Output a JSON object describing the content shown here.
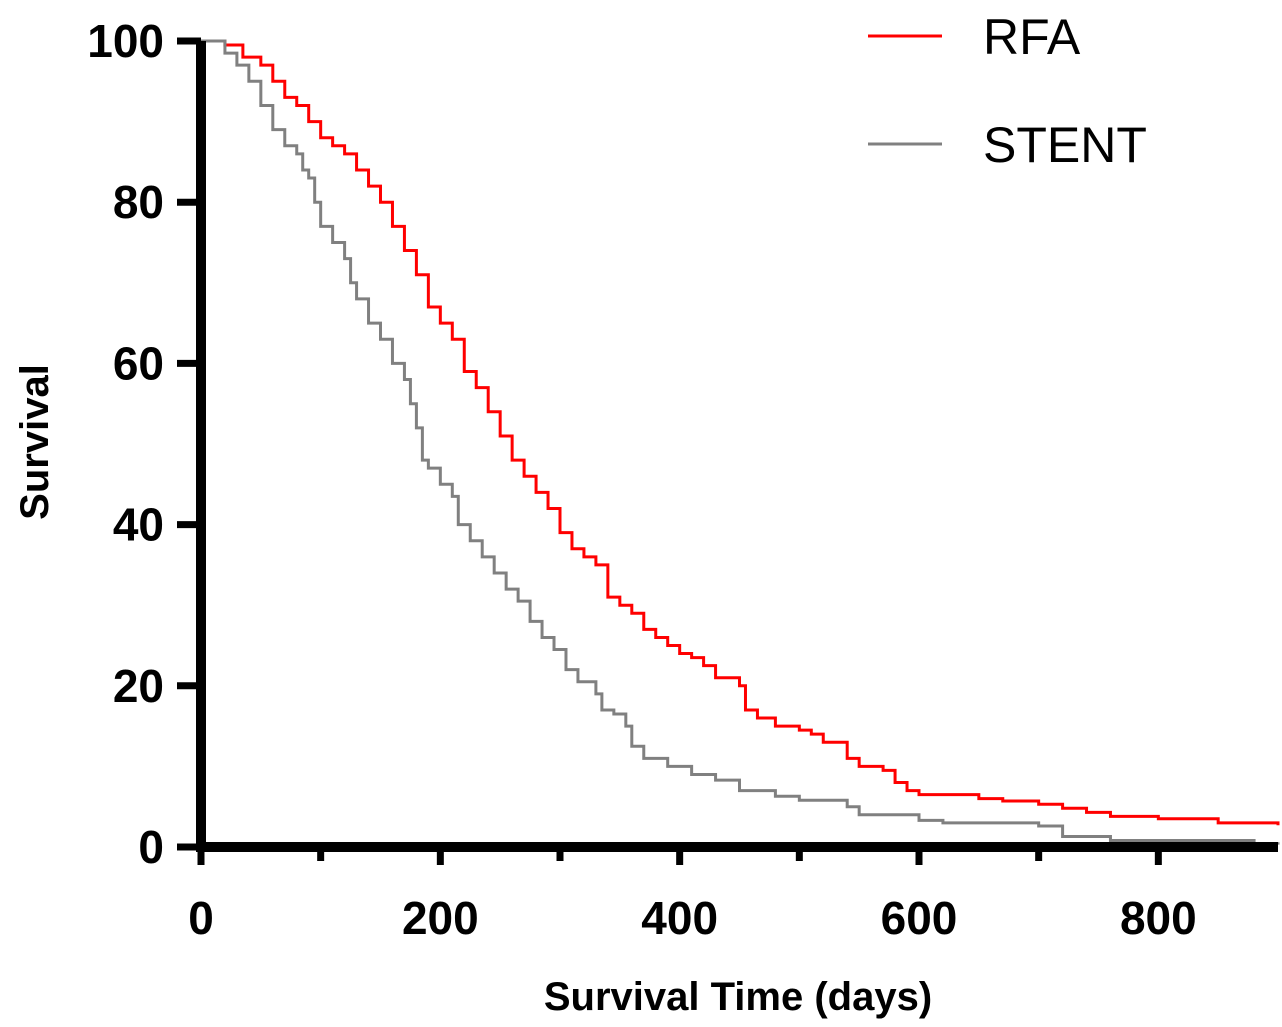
{
  "chart_data": {
    "type": "line",
    "xlabel": "Survival Time (days)",
    "ylabel": "Survival",
    "xlim": [
      0,
      900
    ],
    "ylim": [
      0,
      100
    ],
    "xticks": [
      0,
      200,
      400,
      600,
      800
    ],
    "xticks_minor": [
      100,
      300,
      500,
      700
    ],
    "yticks": [
      0,
      20,
      40,
      60,
      80,
      100
    ],
    "grid": false,
    "step": true,
    "legend": "top-right",
    "series": [
      {
        "name": "RFA",
        "color": "#ff0000",
        "points": [
          [
            0,
            100
          ],
          [
            20,
            99.5
          ],
          [
            35,
            98
          ],
          [
            50,
            97
          ],
          [
            60,
            95
          ],
          [
            70,
            93
          ],
          [
            80,
            92
          ],
          [
            90,
            90
          ],
          [
            100,
            88
          ],
          [
            110,
            87
          ],
          [
            120,
            86
          ],
          [
            130,
            84
          ],
          [
            140,
            82
          ],
          [
            150,
            80
          ],
          [
            160,
            77
          ],
          [
            170,
            74
          ],
          [
            180,
            71
          ],
          [
            190,
            67
          ],
          [
            200,
            65
          ],
          [
            210,
            63
          ],
          [
            220,
            59
          ],
          [
            230,
            57
          ],
          [
            240,
            54
          ],
          [
            250,
            51
          ],
          [
            260,
            48
          ],
          [
            270,
            46
          ],
          [
            280,
            44
          ],
          [
            290,
            42
          ],
          [
            300,
            39
          ],
          [
            310,
            37
          ],
          [
            320,
            36
          ],
          [
            330,
            35
          ],
          [
            340,
            31
          ],
          [
            350,
            30
          ],
          [
            360,
            29
          ],
          [
            370,
            27
          ],
          [
            380,
            26
          ],
          [
            390,
            25
          ],
          [
            400,
            24
          ],
          [
            410,
            23.5
          ],
          [
            420,
            22.5
          ],
          [
            430,
            21
          ],
          [
            450,
            20
          ],
          [
            455,
            17
          ],
          [
            465,
            16
          ],
          [
            480,
            15
          ],
          [
            500,
            14.5
          ],
          [
            510,
            14
          ],
          [
            520,
            13
          ],
          [
            540,
            11
          ],
          [
            550,
            10
          ],
          [
            570,
            9.5
          ],
          [
            580,
            8
          ],
          [
            590,
            7
          ],
          [
            600,
            6.5
          ],
          [
            650,
            6
          ],
          [
            670,
            5.7
          ],
          [
            700,
            5.3
          ],
          [
            720,
            4.8
          ],
          [
            740,
            4.3
          ],
          [
            760,
            3.8
          ],
          [
            800,
            3.5
          ],
          [
            850,
            3
          ],
          [
            900,
            2.7
          ]
        ]
      },
      {
        "name": "STENT",
        "color": "#808080",
        "points": [
          [
            0,
            100
          ],
          [
            20,
            98.5
          ],
          [
            30,
            97
          ],
          [
            40,
            95
          ],
          [
            50,
            92
          ],
          [
            60,
            89
          ],
          [
            70,
            87
          ],
          [
            80,
            86
          ],
          [
            85,
            84
          ],
          [
            90,
            83
          ],
          [
            95,
            80
          ],
          [
            100,
            77
          ],
          [
            110,
            75
          ],
          [
            120,
            73
          ],
          [
            125,
            70
          ],
          [
            130,
            68
          ],
          [
            140,
            65
          ],
          [
            150,
            63
          ],
          [
            160,
            60
          ],
          [
            170,
            58
          ],
          [
            175,
            55
          ],
          [
            180,
            52
          ],
          [
            185,
            48
          ],
          [
            190,
            47
          ],
          [
            200,
            45
          ],
          [
            210,
            43.5
          ],
          [
            215,
            40
          ],
          [
            225,
            38
          ],
          [
            235,
            36
          ],
          [
            245,
            34
          ],
          [
            255,
            32
          ],
          [
            265,
            30.5
          ],
          [
            275,
            28
          ],
          [
            285,
            26
          ],
          [
            295,
            24.5
          ],
          [
            305,
            22
          ],
          [
            315,
            20.5
          ],
          [
            330,
            19
          ],
          [
            335,
            17
          ],
          [
            345,
            16.5
          ],
          [
            355,
            15
          ],
          [
            360,
            12.5
          ],
          [
            370,
            11
          ],
          [
            390,
            10
          ],
          [
            410,
            9
          ],
          [
            430,
            8.3
          ],
          [
            450,
            7
          ],
          [
            480,
            6.3
          ],
          [
            500,
            5.8
          ],
          [
            540,
            5
          ],
          [
            550,
            4
          ],
          [
            600,
            3.3
          ],
          [
            620,
            3
          ],
          [
            700,
            2.6
          ],
          [
            720,
            1.3
          ],
          [
            760,
            0.8
          ],
          [
            880,
            0.4
          ],
          [
            900,
            0.3
          ]
        ]
      }
    ]
  }
}
